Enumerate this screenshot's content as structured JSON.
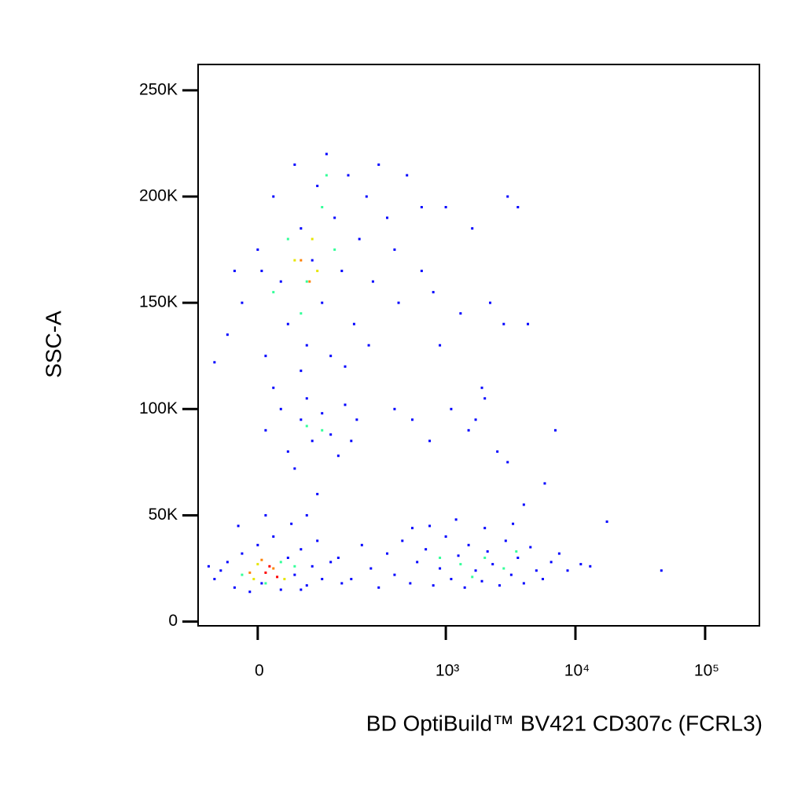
{
  "chart_data": {
    "type": "scatter",
    "x_label": "BD OptiBuild™ BV421 CD307c (FCRL3)",
    "y_label": "SSC-A",
    "xscale": "biexponential",
    "xlim": [
      -90,
      262144
    ],
    "xticks": [
      0,
      {
        "value": 1000,
        "label": "10³"
      },
      {
        "value": 10000,
        "label": "10⁴"
      },
      {
        "value": 100000,
        "label": "10⁵"
      }
    ],
    "ylim": [
      -2000,
      262144
    ],
    "yticks": [
      0,
      {
        "value": 50000,
        "label": "50K"
      },
      {
        "value": 100000,
        "label": "100K"
      },
      {
        "value": 150000,
        "label": "150K"
      },
      {
        "value": 200000,
        "label": "200K"
      },
      {
        "value": 250000,
        "label": "250K"
      }
    ],
    "series": [
      {
        "color": "#0000ff",
        "x": [
          -60,
          -40,
          -30,
          -20,
          -10,
          0,
          5,
          20,
          30,
          40,
          50,
          60,
          70,
          80,
          -50,
          100,
          90,
          -25,
          45,
          120,
          150,
          -70,
          10,
          60,
          140,
          180,
          220,
          260,
          300,
          350,
          400,
          460,
          530,
          600,
          700,
          800,
          900,
          1000,
          1100,
          1250,
          1400,
          1500,
          1700,
          1900,
          2100,
          2300,
          2600,
          2900,
          3200,
          3600,
          4000,
          4500,
          5000,
          5600,
          6500,
          7500,
          8700,
          11000,
          13000,
          46000,
          17500,
          750,
          2000,
          3300,
          1200,
          550,
          -20,
          -40,
          0,
          10,
          20,
          30,
          40,
          50,
          60,
          70,
          80,
          90,
          100,
          110,
          120,
          130,
          150,
          170,
          190,
          210,
          240,
          270,
          300,
          350,
          400,
          500,
          650,
          430,
          250,
          5,
          -30,
          160,
          60,
          -60,
          10,
          30,
          40,
          60,
          70,
          80,
          100,
          120,
          140,
          160,
          50,
          20,
          90,
          70,
          200,
          180,
          400,
          550,
          750,
          1100,
          1500,
          2000,
          2500,
          3000,
          1700,
          7000,
          5800,
          4000,
          800,
          1300,
          2200,
          2800,
          4300,
          1000,
          1600,
          3000,
          3600,
          650,
          900,
          1900
        ],
        "values": [
          20000,
          28000,
          16000,
          32000,
          14000,
          36000,
          18000,
          40000,
          15000,
          30000,
          22000,
          34000,
          17000,
          26000,
          24000,
          20000,
          38000,
          45000,
          46000,
          28000,
          18000,
          26000,
          50000,
          15000,
          30000,
          20000,
          36000,
          25000,
          16000,
          32000,
          22000,
          38000,
          18000,
          28000,
          34000,
          17000,
          25000,
          40000,
          20000,
          31000,
          16000,
          36000,
          24000,
          19000,
          33000,
          27000,
          17000,
          38000,
          22000,
          30000,
          18000,
          35000,
          24000,
          20000,
          28000,
          32000,
          24000,
          27000,
          26000,
          24000,
          47000,
          45000,
          44000,
          46000,
          48000,
          44000,
          150000,
          135000,
          175000,
          125000,
          200000,
          160000,
          140000,
          215000,
          185000,
          130000,
          170000,
          205000,
          150000,
          220000,
          125000,
          190000,
          165000,
          210000,
          140000,
          180000,
          200000,
          160000,
          215000,
          190000,
          175000,
          210000,
          195000,
          150000,
          130000,
          165000,
          165000,
          120000,
          118000,
          122000,
          90000,
          100000,
          80000,
          95000,
          105000,
          85000,
          98000,
          88000,
          78000,
          102000,
          72000,
          110000,
          60000,
          50000,
          95000,
          85000,
          100000,
          95000,
          85000,
          100000,
          90000,
          105000,
          80000,
          75000,
          95000,
          90000,
          65000,
          55000,
          155000,
          145000,
          150000,
          140000,
          140000,
          195000,
          185000,
          200000,
          195000,
          165000,
          130000,
          110000
        ]
      },
      {
        "color": "#33ff99",
        "x": [
          -20,
          30,
          10,
          50,
          1300,
          2000,
          2800,
          1600,
          3500,
          900,
          40,
          70,
          100,
          60,
          130,
          20,
          110,
          70,
          100
        ],
        "values": [
          22000,
          28000,
          18000,
          26000,
          27000,
          30000,
          25000,
          21000,
          33000,
          30000,
          180000,
          160000,
          195000,
          145000,
          175000,
          155000,
          210000,
          92000,
          90000
        ]
      },
      {
        "color": "#e6e600",
        "x": [
          0,
          35,
          -5,
          50,
          80,
          90
        ],
        "values": [
          27000,
          20000,
          20000,
          170000,
          180000,
          165000
        ]
      },
      {
        "color": "#ff8000",
        "x": [
          20,
          -10,
          5,
          60,
          75
        ],
        "values": [
          25000,
          23000,
          29000,
          170000,
          160000
        ]
      },
      {
        "color": "#ff0000",
        "x": [
          10,
          25,
          15
        ],
        "values": [
          23000,
          21000,
          26000
        ]
      }
    ]
  }
}
